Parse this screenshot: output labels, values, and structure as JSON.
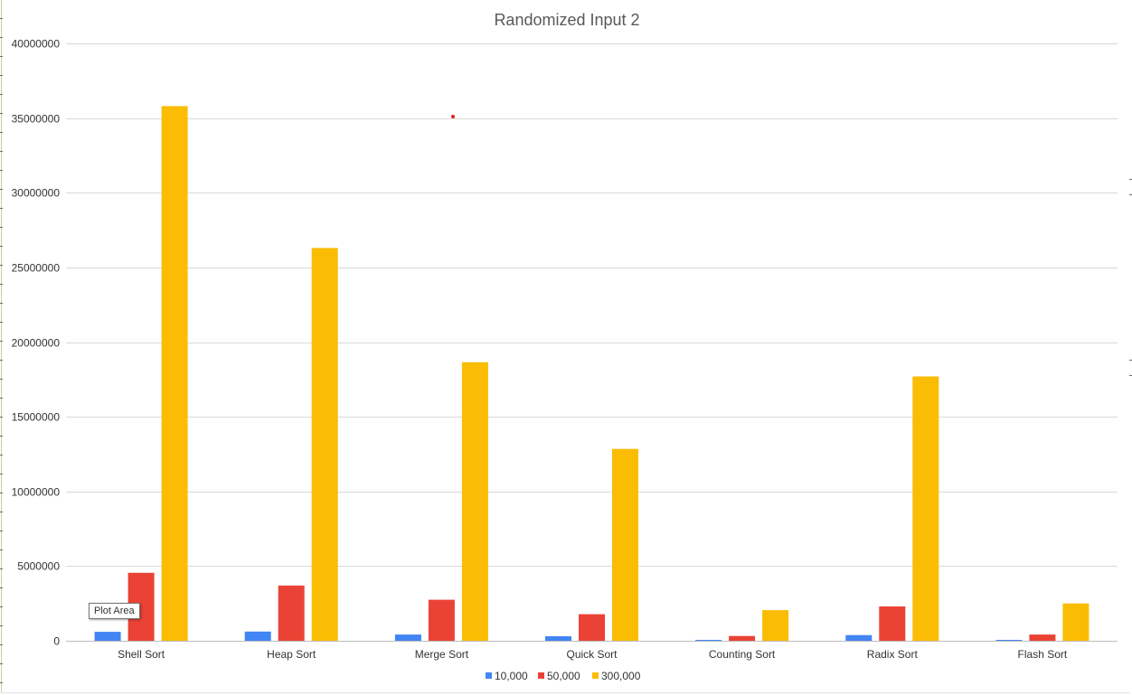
{
  "chart_data": {
    "type": "bar",
    "title": "Randomized Input 2",
    "categories": [
      "Shell Sort",
      "Heap Sort",
      "Merge Sort",
      "Quick Sort",
      "Counting Sort",
      "Radix Sort",
      "Flash Sort"
    ],
    "series": [
      {
        "name": "10,000",
        "color": "#4285F4",
        "values": [
          600000,
          620000,
          420000,
          300000,
          60000,
          380000,
          60000
        ]
      },
      {
        "name": "50,000",
        "color": "#EA4335",
        "values": [
          4550000,
          3700000,
          2750000,
          1780000,
          320000,
          2300000,
          420000
        ]
      },
      {
        "name": "300,000",
        "color": "#FBBC04",
        "values": [
          35800000,
          26300000,
          18650000,
          12850000,
          2050000,
          17700000,
          2500000
        ]
      }
    ],
    "y_ticks": [
      "0",
      "5000000",
      "10000000",
      "15000000",
      "20000000",
      "25000000",
      "30000000",
      "35000000",
      "40000000"
    ],
    "ylim": [
      0,
      40000000
    ],
    "xlabel": "",
    "ylabel": "",
    "grid": true,
    "legend_position": "bottom"
  },
  "tooltip": {
    "text": "Plot Area"
  }
}
